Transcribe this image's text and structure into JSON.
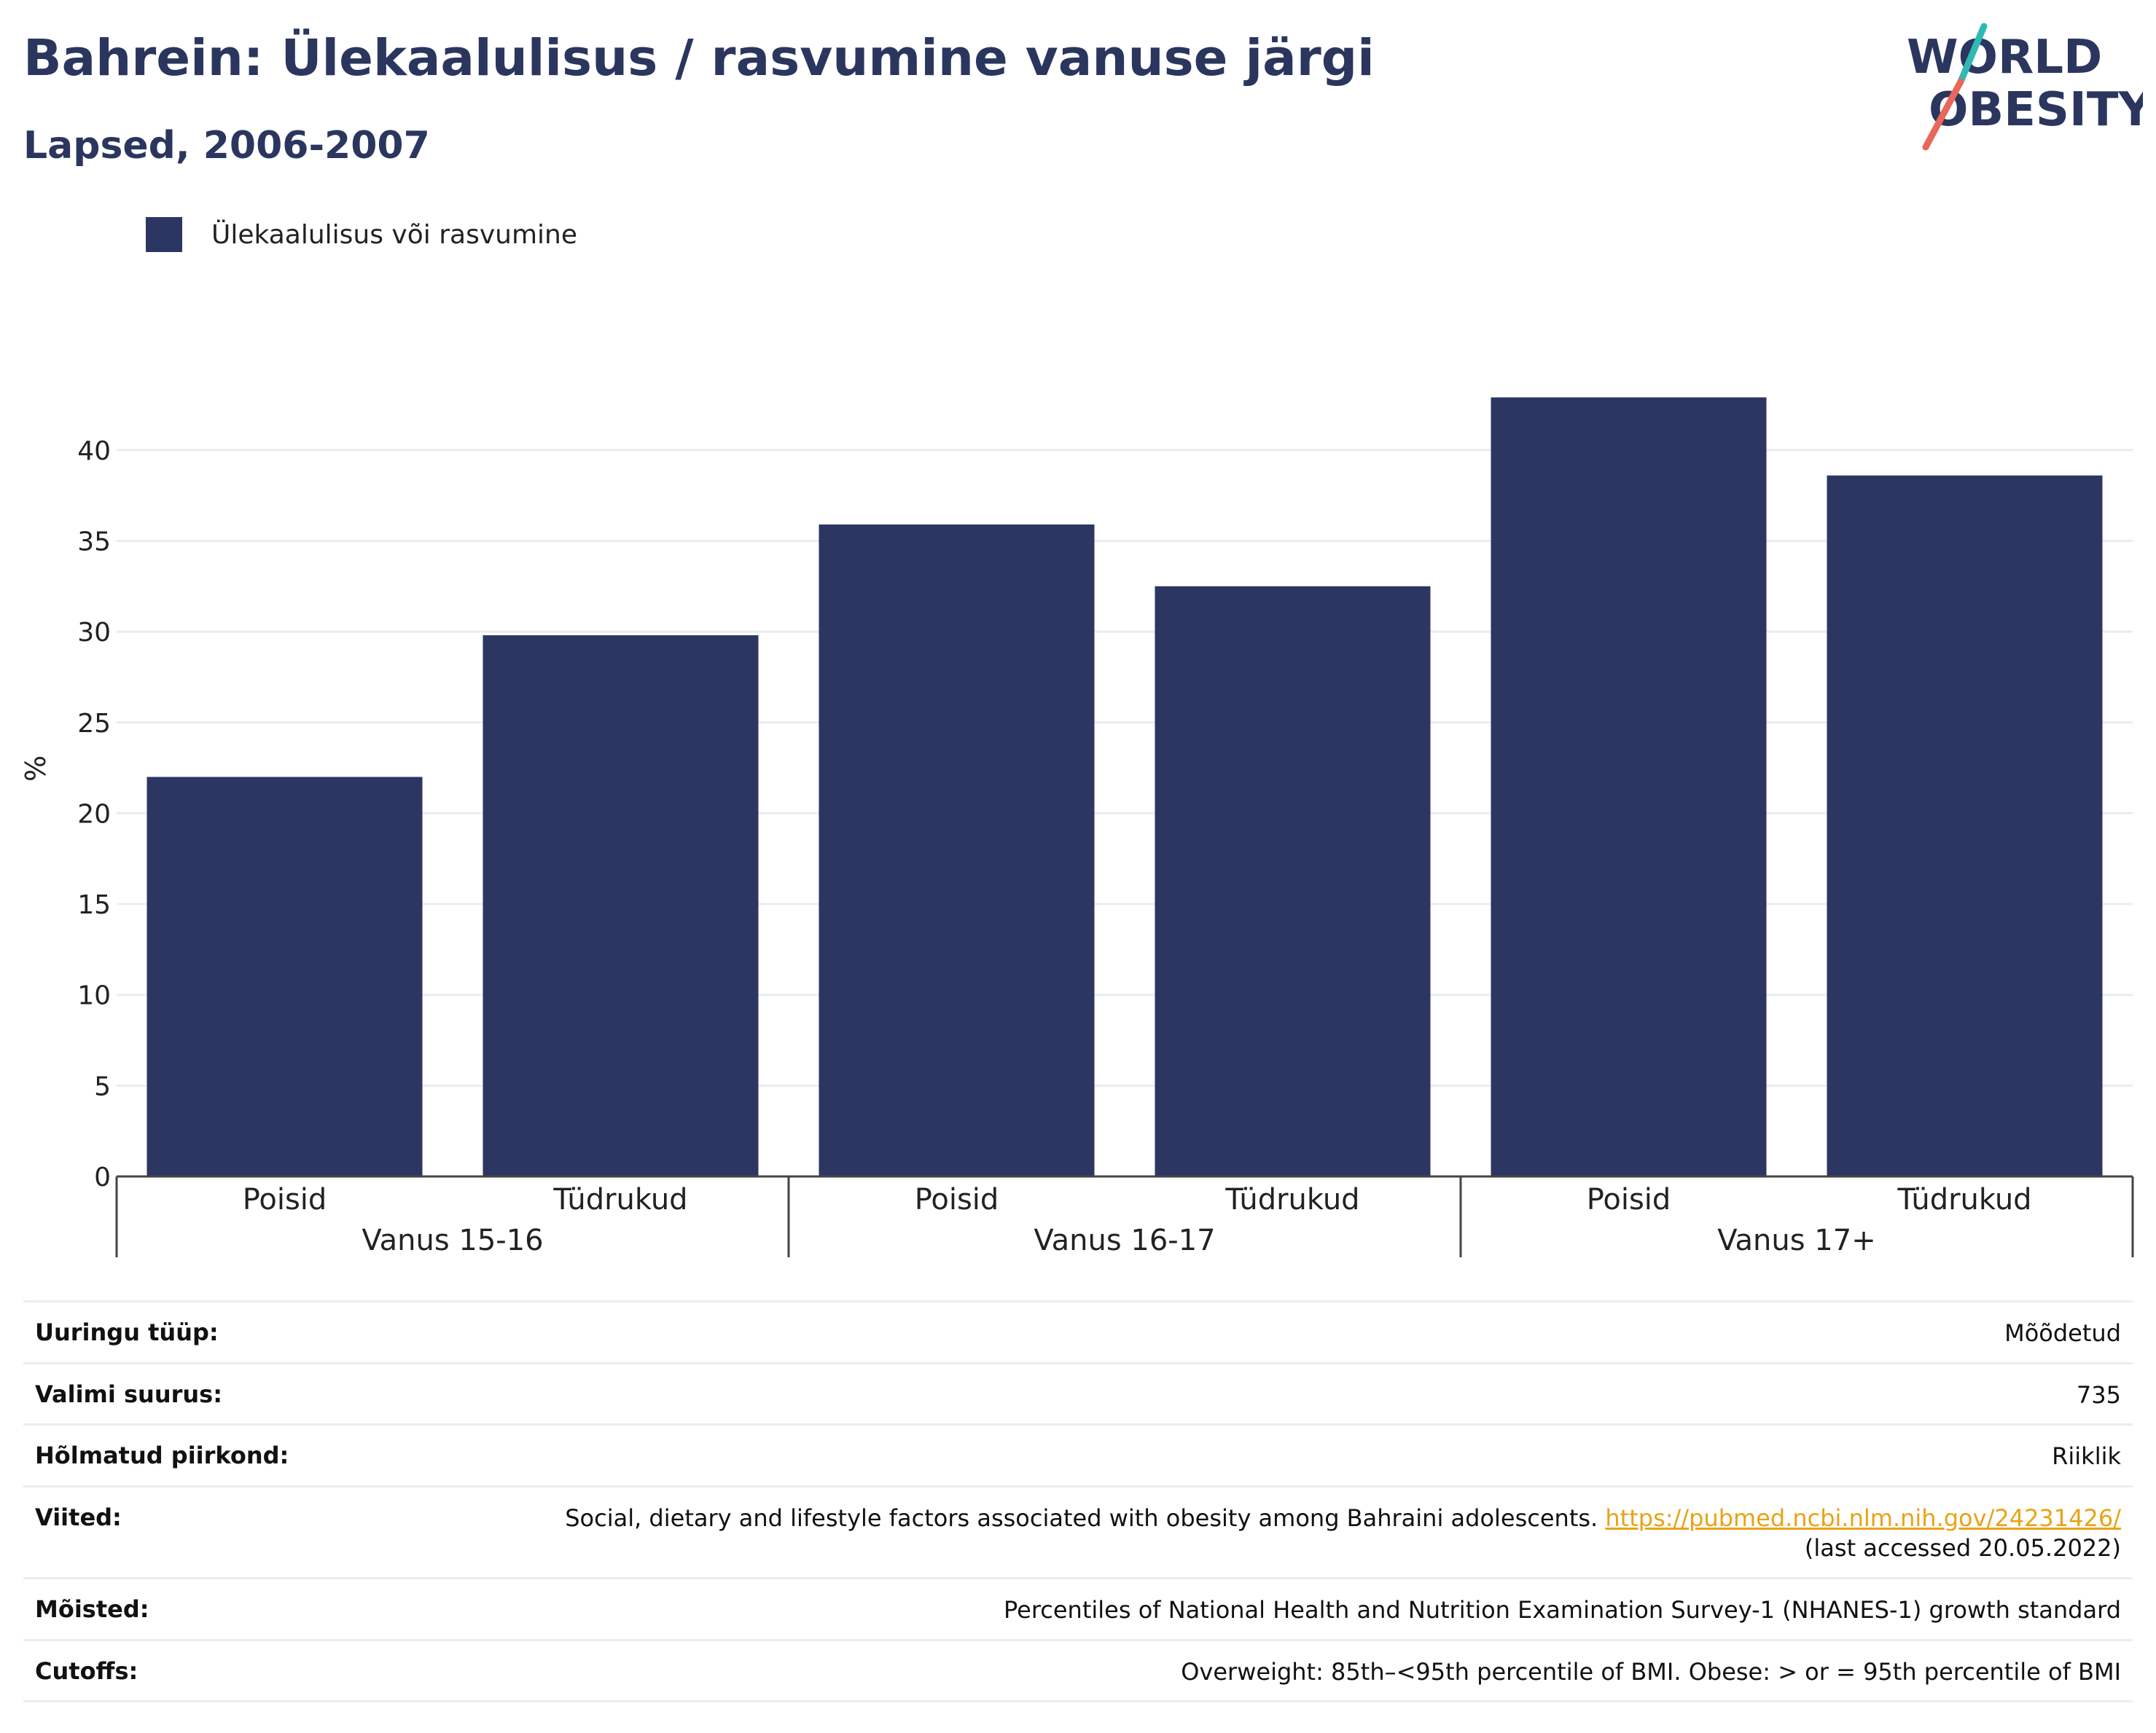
{
  "title": "Bahrein: Ülekaalulisus / rasvumine vanuse järgi",
  "subtitle": "Lapsed, 2006-2007",
  "logo": {
    "line1": "WORLD",
    "line2": "OBESITY"
  },
  "colors": {
    "bar": "#2b3663",
    "text": "#2b365f",
    "grid": "#e9ebf0",
    "link": "#e8a317",
    "logo_slash_top": "#2fb9b3",
    "logo_slash_bottom": "#e8685a"
  },
  "chart_data": {
    "type": "bar",
    "title": "Bahrein: Ülekaalulisus / rasvumine vanuse järgi",
    "subtitle": "Lapsed, 2006-2007",
    "ylabel": "%",
    "xlabel": "",
    "ylim": [
      0,
      45
    ],
    "yticks": [
      "0",
      "5",
      "10",
      "15",
      "20",
      "25",
      "30",
      "35",
      "40"
    ],
    "grid": true,
    "legend_position": "top-left",
    "groups": [
      "Vanus 15-16",
      "Vanus 16-17",
      "Vanus 17+"
    ],
    "categories": [
      "Poisid",
      "Tüdrukud",
      "Poisid",
      "Tüdrukud",
      "Poisid",
      "Tüdrukud"
    ],
    "series": [
      {
        "name": "Ülekaalulisus või rasvumine",
        "values": [
          22.0,
          29.8,
          35.9,
          32.5,
          42.9,
          38.6
        ]
      }
    ]
  },
  "info": [
    {
      "label": "Uuringu tüüp:",
      "value": "Mõõdetud"
    },
    {
      "label": "Valimi suurus:",
      "value": "735"
    },
    {
      "label": "Hõlmatud piirkond:",
      "value": "Riiklik"
    },
    {
      "label": "Viited:",
      "value": "Social, dietary and lifestyle factors associated with obesity among Bahraini adolescents.",
      "link": "https://pubmed.ncbi.nlm.nih.gov/24231426/",
      "note": "(last accessed 20.05.2022)"
    },
    {
      "label": "Mõisted:",
      "value": "Percentiles of National Health and Nutrition Examination Survey-1 (NHANES-1) growth standard"
    },
    {
      "label": "Cutoffs:",
      "value": "Overweight: 85th–<95th percentile of BMI. Obese: > or = 95th percentile of BMI"
    }
  ]
}
